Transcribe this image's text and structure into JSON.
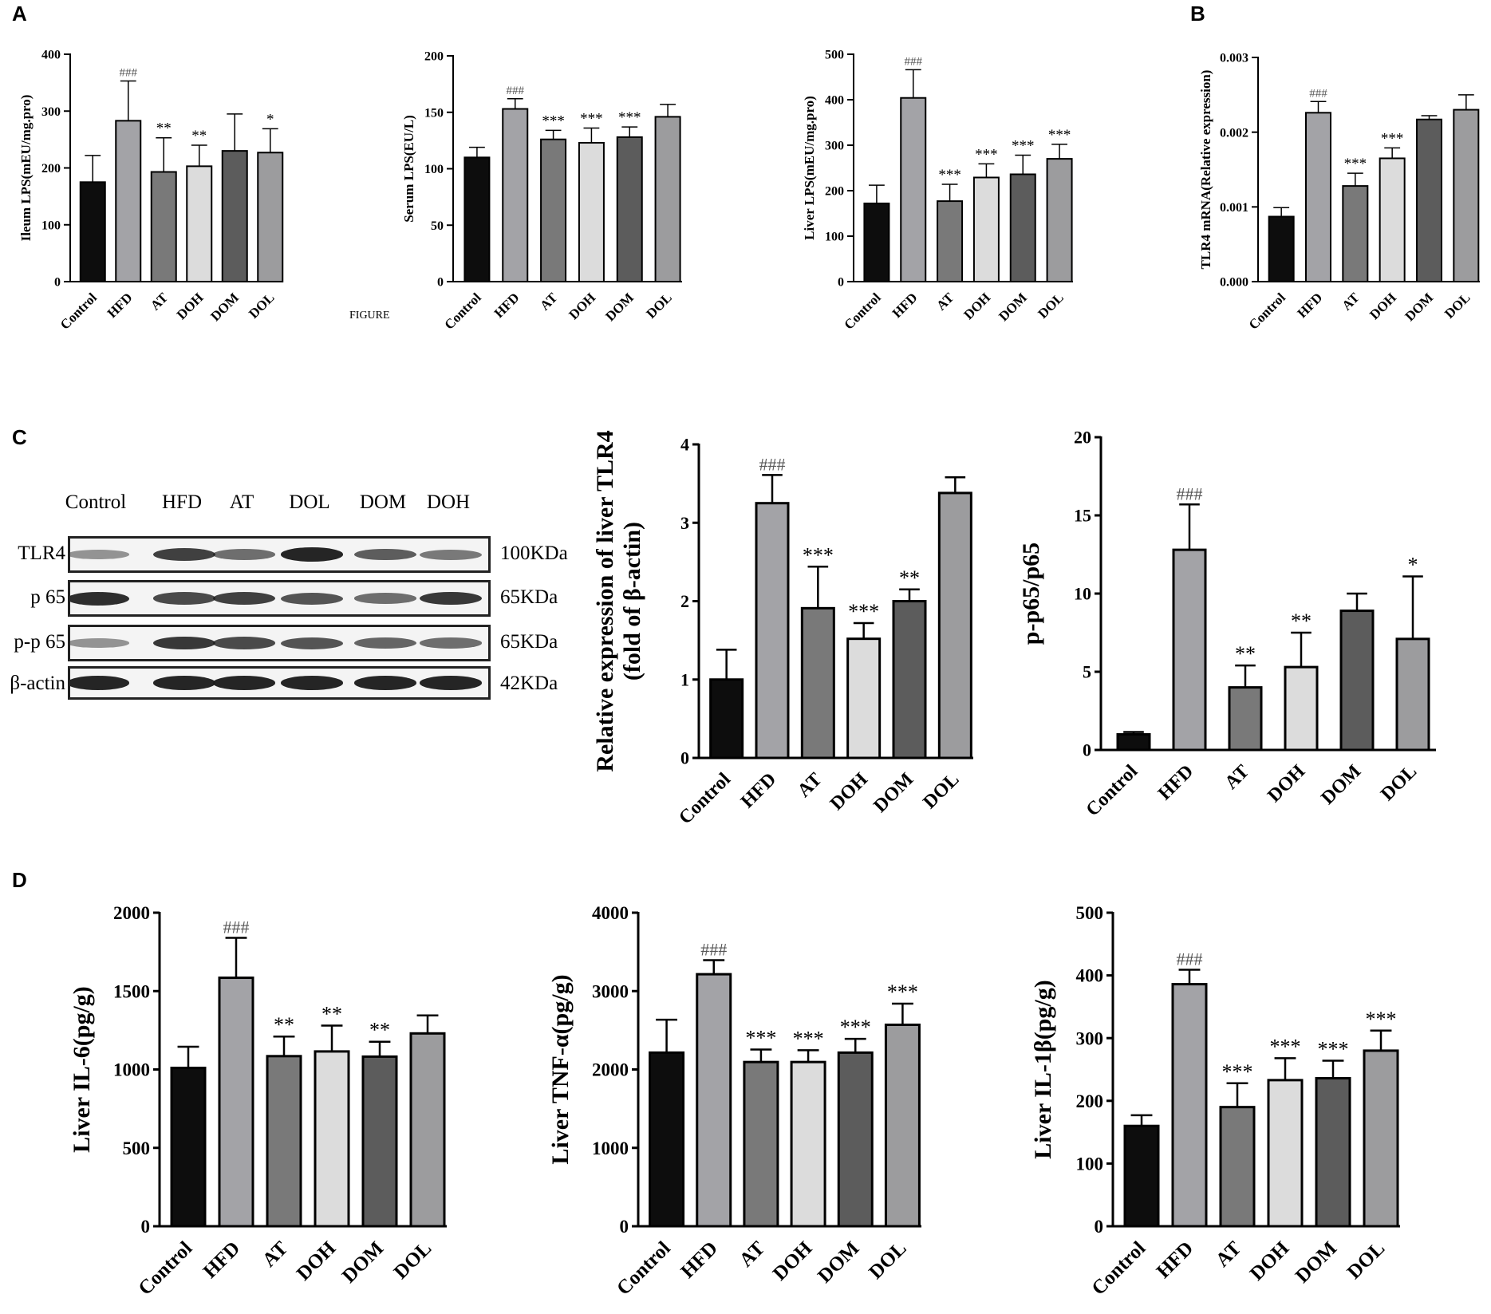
{
  "panel_letters": [
    "A",
    "B",
    "C",
    "D"
  ],
  "stray_text": "FIGURE",
  "western_blot": {
    "lanes": [
      "Control",
      "HFD",
      "AT",
      "DOL",
      "DOM",
      "DOH"
    ],
    "rows": [
      {
        "label": "TLR4",
        "kda": "100KDa",
        "intensity": [
          0.35,
          0.8,
          0.55,
          0.95,
          0.65,
          0.5
        ]
      },
      {
        "label": "p 65",
        "kda": "65KDa",
        "intensity": [
          0.9,
          0.75,
          0.8,
          0.7,
          0.55,
          0.85
        ]
      },
      {
        "label": "p-p 65",
        "kda": "65KDa",
        "intensity": [
          0.35,
          0.85,
          0.75,
          0.7,
          0.6,
          0.55
        ]
      },
      {
        "label": "β-actin",
        "kda": "42KDa",
        "intensity": [
          0.95,
          0.95,
          0.95,
          0.95,
          0.95,
          0.95
        ]
      }
    ]
  },
  "chart_data": [
    {
      "type": "bar",
      "id": "A1",
      "title": "",
      "xlabel": "",
      "ylabel": "Ileum LPS(mEU/mg.pro)",
      "categories": [
        "Control",
        "HFD",
        "AT",
        "DOH",
        "DOM",
        "DOL"
      ],
      "values": [
        175,
        283,
        193,
        203,
        230,
        227
      ],
      "errors": [
        47,
        70,
        60,
        37,
        65,
        42
      ],
      "annotations": [
        "",
        "###",
        "**",
        "**",
        "",
        "*"
      ],
      "ylim": [
        0,
        400
      ],
      "yticks": [
        "0",
        "100",
        "200",
        "300",
        "400"
      ],
      "legend": "none"
    },
    {
      "type": "bar",
      "id": "A2",
      "title": "",
      "xlabel": "",
      "ylabel": "Serum LPS(EU/L)",
      "categories": [
        "Control",
        "HFD",
        "AT",
        "DOH",
        "DOM",
        "DOL"
      ],
      "values": [
        110,
        153,
        126,
        123,
        128,
        146
      ],
      "errors": [
        9,
        9,
        8,
        13,
        9,
        11
      ],
      "annotations": [
        "",
        "###",
        "***",
        "***",
        "***",
        ""
      ],
      "ylim": [
        0,
        200
      ],
      "yticks": [
        "0",
        "50",
        "100",
        "150",
        "200"
      ],
      "legend": "none"
    },
    {
      "type": "bar",
      "id": "A3",
      "title": "",
      "xlabel": "",
      "ylabel": "Liver LPS(mEU/mg.pro)",
      "categories": [
        "Control",
        "HFD",
        "AT",
        "DOH",
        "DOM",
        "DOL"
      ],
      "values": [
        172,
        404,
        177,
        229,
        236,
        270
      ],
      "errors": [
        40,
        62,
        37,
        30,
        42,
        32
      ],
      "annotations": [
        "",
        "###",
        "***",
        "***",
        "***",
        "***"
      ],
      "ylim": [
        0,
        500
      ],
      "yticks": [
        "0",
        "100",
        "200",
        "300",
        "400",
        "500"
      ],
      "legend": "none"
    },
    {
      "type": "bar",
      "id": "B",
      "title": "",
      "xlabel": "",
      "ylabel": "TLR4 mRNA(Relative expression)",
      "categories": [
        "Control",
        "HFD",
        "AT",
        "DOH",
        "DOM",
        "DOL"
      ],
      "values": [
        0.00087,
        0.00226,
        0.00128,
        0.00165,
        0.00217,
        0.0023
      ],
      "errors": [
        0.00012,
        0.00015,
        0.00017,
        0.00014,
        5e-05,
        0.0002
      ],
      "annotations": [
        "",
        "###",
        "***",
        "***",
        "",
        ""
      ],
      "ylim": [
        0,
        0.003
      ],
      "yticks": [
        "0.000",
        "0.001",
        "0.002",
        "0.003"
      ],
      "legend": "none"
    },
    {
      "type": "bar",
      "id": "C1",
      "title": "",
      "xlabel": "",
      "ylabel": "Relative expression of liver TLR4",
      "ylabel2": "(fold of β-actin)",
      "categories": [
        "Control",
        "HFD",
        "AT",
        "DOH",
        "DOM",
        "DOL"
      ],
      "values": [
        1.0,
        3.25,
        1.91,
        1.52,
        2.0,
        3.38
      ],
      "errors": [
        0.38,
        0.36,
        0.53,
        0.2,
        0.15,
        0.2
      ],
      "annotations": [
        "",
        "###",
        "***",
        "***",
        "**",
        ""
      ],
      "ylim": [
        0,
        4
      ],
      "yticks": [
        "0",
        "1",
        "2",
        "3",
        "4"
      ],
      "legend": "none"
    },
    {
      "type": "bar",
      "id": "C2",
      "title": "",
      "xlabel": "",
      "ylabel": "p-p65/p65",
      "categories": [
        "Control",
        "HFD",
        "AT",
        "DOH",
        "DOM",
        "DOL"
      ],
      "values": [
        1.0,
        12.8,
        4.0,
        5.3,
        8.9,
        7.1
      ],
      "errors": [
        0.15,
        2.9,
        1.4,
        2.2,
        1.1,
        4.0
      ],
      "annotations": [
        "",
        "###",
        "**",
        "**",
        "",
        "*"
      ],
      "ylim": [
        0,
        20
      ],
      "yticks": [
        "0",
        "5",
        "10",
        "15",
        "20"
      ],
      "legend": "none"
    },
    {
      "type": "bar",
      "id": "D1",
      "title": "",
      "xlabel": "",
      "ylabel": "Liver IL-6(pg/g)",
      "categories": [
        "Control",
        "HFD",
        "AT",
        "DOH",
        "DOM",
        "DOL"
      ],
      "values": [
        1010,
        1585,
        1085,
        1115,
        1082,
        1230
      ],
      "errors": [
        135,
        255,
        125,
        165,
        95,
        115
      ],
      "annotations": [
        "",
        "###",
        "**",
        "**",
        "**",
        ""
      ],
      "ylim": [
        0,
        2000
      ],
      "yticks": [
        "0",
        "500",
        "1000",
        "1500",
        "2000"
      ],
      "legend": "none"
    },
    {
      "type": "bar",
      "id": "D2",
      "title": "",
      "xlabel": "",
      "ylabel": "Liver TNF-α(pg/g)",
      "categories": [
        "Control",
        "HFD",
        "AT",
        "DOH",
        "DOM",
        "DOL"
      ],
      "values": [
        2215,
        3215,
        2095,
        2095,
        2215,
        2570
      ],
      "errors": [
        420,
        180,
        160,
        150,
        175,
        270
      ],
      "annotations": [
        "",
        "###",
        "***",
        "***",
        "***",
        "***"
      ],
      "ylim": [
        0,
        4000
      ],
      "yticks": [
        "0",
        "1000",
        "2000",
        "3000",
        "4000"
      ],
      "legend": "none"
    },
    {
      "type": "bar",
      "id": "D3",
      "title": "",
      "xlabel": "",
      "ylabel": "Liver IL-1β(pg/g)",
      "categories": [
        "Control",
        "HFD",
        "AT",
        "DOH",
        "DOM",
        "DOL"
      ],
      "values": [
        160,
        386,
        190,
        233,
        236,
        280
      ],
      "errors": [
        17,
        23,
        38,
        35,
        28,
        32
      ],
      "annotations": [
        "",
        "###",
        "***",
        "***",
        "***",
        "***"
      ],
      "ylim": [
        0,
        500
      ],
      "yticks": [
        "0",
        "100",
        "200",
        "300",
        "400",
        "500"
      ],
      "legend": "none"
    }
  ],
  "colors": {
    "bars": [
      "#0d0d0d",
      "#a3a3a7",
      "#797979",
      "#dcdcdc",
      "#5c5c5c",
      "#9c9c9e"
    ],
    "axis": "#000000"
  }
}
